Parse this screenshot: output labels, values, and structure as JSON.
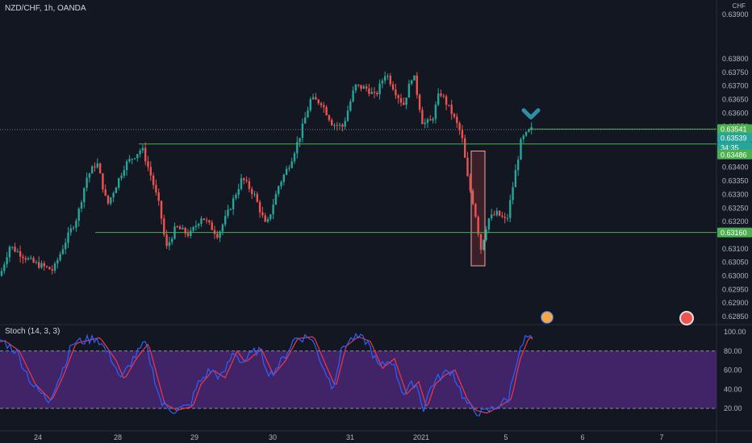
{
  "header": {
    "symbol_label": "NZD/CHF, 1h, OANDA"
  },
  "currency_label": "CHF",
  "stoch_panel": {
    "label": "Stoch (14, 3, 3)"
  },
  "colors": {
    "bg": "#131722",
    "up": "#26a69a",
    "down": "#ef5350",
    "level": "#4caf50",
    "stoch_k": "#2962ff",
    "stoch_d": "#f23645",
    "band": "#4a2673",
    "box": "#f7a6a0",
    "arrow": "#2f8ea6"
  },
  "price_axis": {
    "ticks": [
      "0.63800",
      "0.63750",
      "0.63700",
      "0.63650",
      "0.63600",
      "0.63550",
      "0.63450",
      "0.63400",
      "0.63350",
      "0.63300",
      "0.63250",
      "0.63200",
      "0.63100",
      "0.63050",
      "0.63000",
      "0.62950",
      "0.62900",
      "0.62850"
    ],
    "badges": [
      {
        "label": "0.63541",
        "color": "#4caf50"
      },
      {
        "label": "0.63539",
        "color": "#26a69a"
      },
      {
        "label": "34:35",
        "color": "#26a69a"
      },
      {
        "label": "0.63486",
        "color": "#4caf50"
      },
      {
        "label": "0.63160",
        "color": "#4caf50"
      }
    ]
  },
  "stoch_axis": {
    "ticks": [
      "100.00",
      "80.00",
      "60.00",
      "40.00",
      "20.00"
    ]
  },
  "time_axis": {
    "labels": [
      "24",
      "28",
      "29",
      "30",
      "31",
      "2021",
      "5",
      "6",
      "7"
    ]
  },
  "chart_data": {
    "type": "candlestick",
    "symbol": "NZD/CHF",
    "timeframe": "1h",
    "levels": [
      0.63541,
      0.63486,
      0.6316
    ],
    "last_price": 0.63539,
    "price_range": [
      0.6283,
      0.639
    ],
    "stoch_levels": [
      80,
      20
    ],
    "stoch_range": [
      0,
      100
    ],
    "annotations": [
      "down-arrow near 0.63560 on 5",
      "highlight box 0.63037–0.63460 on 4"
    ]
  }
}
